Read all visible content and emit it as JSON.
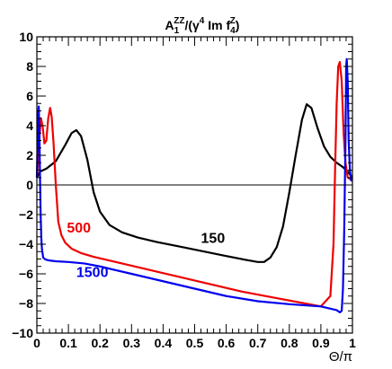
{
  "chart_data": {
    "type": "line",
    "title": {
      "base": "A",
      "sub1": "1",
      "sup1": "ZZ",
      "mid": "/(γ",
      "sup2": "4",
      "mid2": " Im f",
      "sub2": "4",
      "sup3": "Z",
      "end": ")"
    },
    "xlabel": "Θ/π",
    "ylabel": "",
    "xlim": [
      0,
      1
    ],
    "ylim": [
      -10,
      10
    ],
    "x_ticks": [
      "0",
      "0.1",
      "0.2",
      "0.3",
      "0.4",
      "0.5",
      "0.6",
      "0.7",
      "0.8",
      "0.9",
      "1"
    ],
    "x_tick_values": [
      0,
      0.1,
      0.2,
      0.3,
      0.4,
      0.5,
      0.6,
      0.7,
      0.8,
      0.9,
      1
    ],
    "y_ticks": [
      "10",
      "8",
      "6",
      "4",
      "2",
      "0",
      "−2",
      "−4",
      "−6",
      "−8",
      "−10"
    ],
    "y_tick_values": [
      10,
      8,
      6,
      4,
      2,
      0,
      -2,
      -4,
      -6,
      -8,
      -10
    ],
    "grid": false,
    "reference_line": 0,
    "series": [
      {
        "name": "150",
        "color": "#000000",
        "x": [
          0,
          0.01,
          0.03,
          0.06,
          0.09,
          0.11,
          0.125,
          0.14,
          0.16,
          0.18,
          0.2,
          0.23,
          0.27,
          0.32,
          0.38,
          0.45,
          0.52,
          0.6,
          0.66,
          0.7,
          0.72,
          0.74,
          0.76,
          0.78,
          0.8,
          0.82,
          0.84,
          0.855,
          0.87,
          0.89,
          0.91,
          0.93,
          0.95,
          0.97,
          0.985,
          1
        ],
        "values": [
          0.5,
          0.9,
          1.1,
          1.6,
          2.7,
          3.5,
          3.7,
          3.3,
          1.7,
          -0.5,
          -1.8,
          -2.7,
          -3.2,
          -3.55,
          -3.85,
          -4.15,
          -4.45,
          -4.8,
          -5.05,
          -5.2,
          -5.2,
          -4.9,
          -4.2,
          -2.8,
          -0.5,
          2.0,
          4.4,
          5.45,
          5.2,
          3.8,
          2.6,
          1.9,
          1.5,
          1.2,
          0.9,
          0.5
        ]
      },
      {
        "name": "500",
        "color": "#ee0000",
        "x": [
          0,
          0.004,
          0.008,
          0.013,
          0.018,
          0.024,
          0.03,
          0.036,
          0.042,
          0.047,
          0.053,
          0.06,
          0.068,
          0.078,
          0.09,
          0.11,
          0.14,
          0.18,
          0.25,
          0.35,
          0.45,
          0.55,
          0.65,
          0.75,
          0.85,
          0.9,
          0.93,
          0.94,
          0.945,
          0.95,
          0.955,
          0.96,
          0.966,
          0.972,
          0.978,
          0.985,
          0.992,
          1
        ],
        "values": [
          0.5,
          1.6,
          3.2,
          4.5,
          4.0,
          2.8,
          3.0,
          4.5,
          5.2,
          4.6,
          2.8,
          0.0,
          -2.5,
          -3.4,
          -3.9,
          -4.3,
          -4.6,
          -4.85,
          -5.2,
          -5.7,
          -6.2,
          -6.7,
          -7.2,
          -7.6,
          -8.0,
          -8.2,
          -7.5,
          -4.0,
          1.0,
          5.5,
          8.0,
          8.3,
          7.0,
          3.5,
          1.5,
          0.5,
          0.4,
          0.5
        ]
      },
      {
        "name": "1500",
        "color": "#0000ee",
        "x": [
          0,
          0.002,
          0.004,
          0.006,
          0.008,
          0.01,
          0.012,
          0.014,
          0.016,
          0.02,
          0.025,
          0.03,
          0.04,
          0.06,
          0.1,
          0.15,
          0.2,
          0.3,
          0.4,
          0.5,
          0.6,
          0.7,
          0.8,
          0.9,
          0.95,
          0.96,
          0.966,
          0.97,
          0.974,
          0.978,
          0.98,
          0.982,
          0.985,
          0.988,
          0.992,
          0.996,
          1
        ],
        "values": [
          0.5,
          2.5,
          4.8,
          5.3,
          3.5,
          0.5,
          -2.0,
          -3.5,
          -4.3,
          -4.9,
          -5.0,
          -5.05,
          -5.1,
          -5.15,
          -5.2,
          -5.3,
          -5.5,
          -6.0,
          -6.5,
          -7.0,
          -7.5,
          -7.85,
          -8.05,
          -8.2,
          -8.45,
          -8.6,
          -8.5,
          -7.0,
          -3.0,
          3.0,
          8.0,
          8.5,
          7.0,
          3.0,
          1.0,
          0.3,
          0.3
        ]
      }
    ],
    "annotations": [
      {
        "text": "150",
        "color": "#000000",
        "x": 0.52,
        "y": -3.9
      },
      {
        "text": "500",
        "color": "#ee0000",
        "x": 0.095,
        "y": -3.2
      },
      {
        "text": "1500",
        "color": "#0000ee",
        "x": 0.125,
        "y": -6.2
      }
    ]
  }
}
